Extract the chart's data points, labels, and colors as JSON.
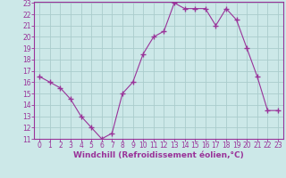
{
  "x": [
    0,
    1,
    2,
    3,
    4,
    5,
    6,
    7,
    8,
    9,
    10,
    11,
    12,
    13,
    14,
    15,
    16,
    17,
    18,
    19,
    20,
    21,
    22,
    23
  ],
  "y": [
    16.5,
    16.0,
    15.5,
    14.5,
    13.0,
    12.0,
    11.0,
    11.5,
    15.0,
    16.0,
    18.5,
    20.0,
    20.5,
    23.0,
    22.5,
    22.5,
    22.5,
    21.0,
    22.5,
    21.5,
    19.0,
    16.5,
    13.5,
    13.5
  ],
  "line_color": "#993399",
  "marker": "+",
  "marker_size": 4,
  "bg_color": "#cce8e8",
  "grid_color": "#aacccc",
  "axis_label_color": "#993399",
  "tick_color": "#993399",
  "xlabel": "Windchill (Refroidissement éolien,°C)",
  "ylim": [
    11,
    23
  ],
  "xlim": [
    -0.5,
    23.5
  ],
  "yticks": [
    11,
    12,
    13,
    14,
    15,
    16,
    17,
    18,
    19,
    20,
    21,
    22,
    23
  ],
  "xticks": [
    0,
    1,
    2,
    3,
    4,
    5,
    6,
    7,
    8,
    9,
    10,
    11,
    12,
    13,
    14,
    15,
    16,
    17,
    18,
    19,
    20,
    21,
    22,
    23
  ],
  "xlabel_fontsize": 6.5,
  "tick_fontsize": 5.5,
  "border_color": "#993399"
}
